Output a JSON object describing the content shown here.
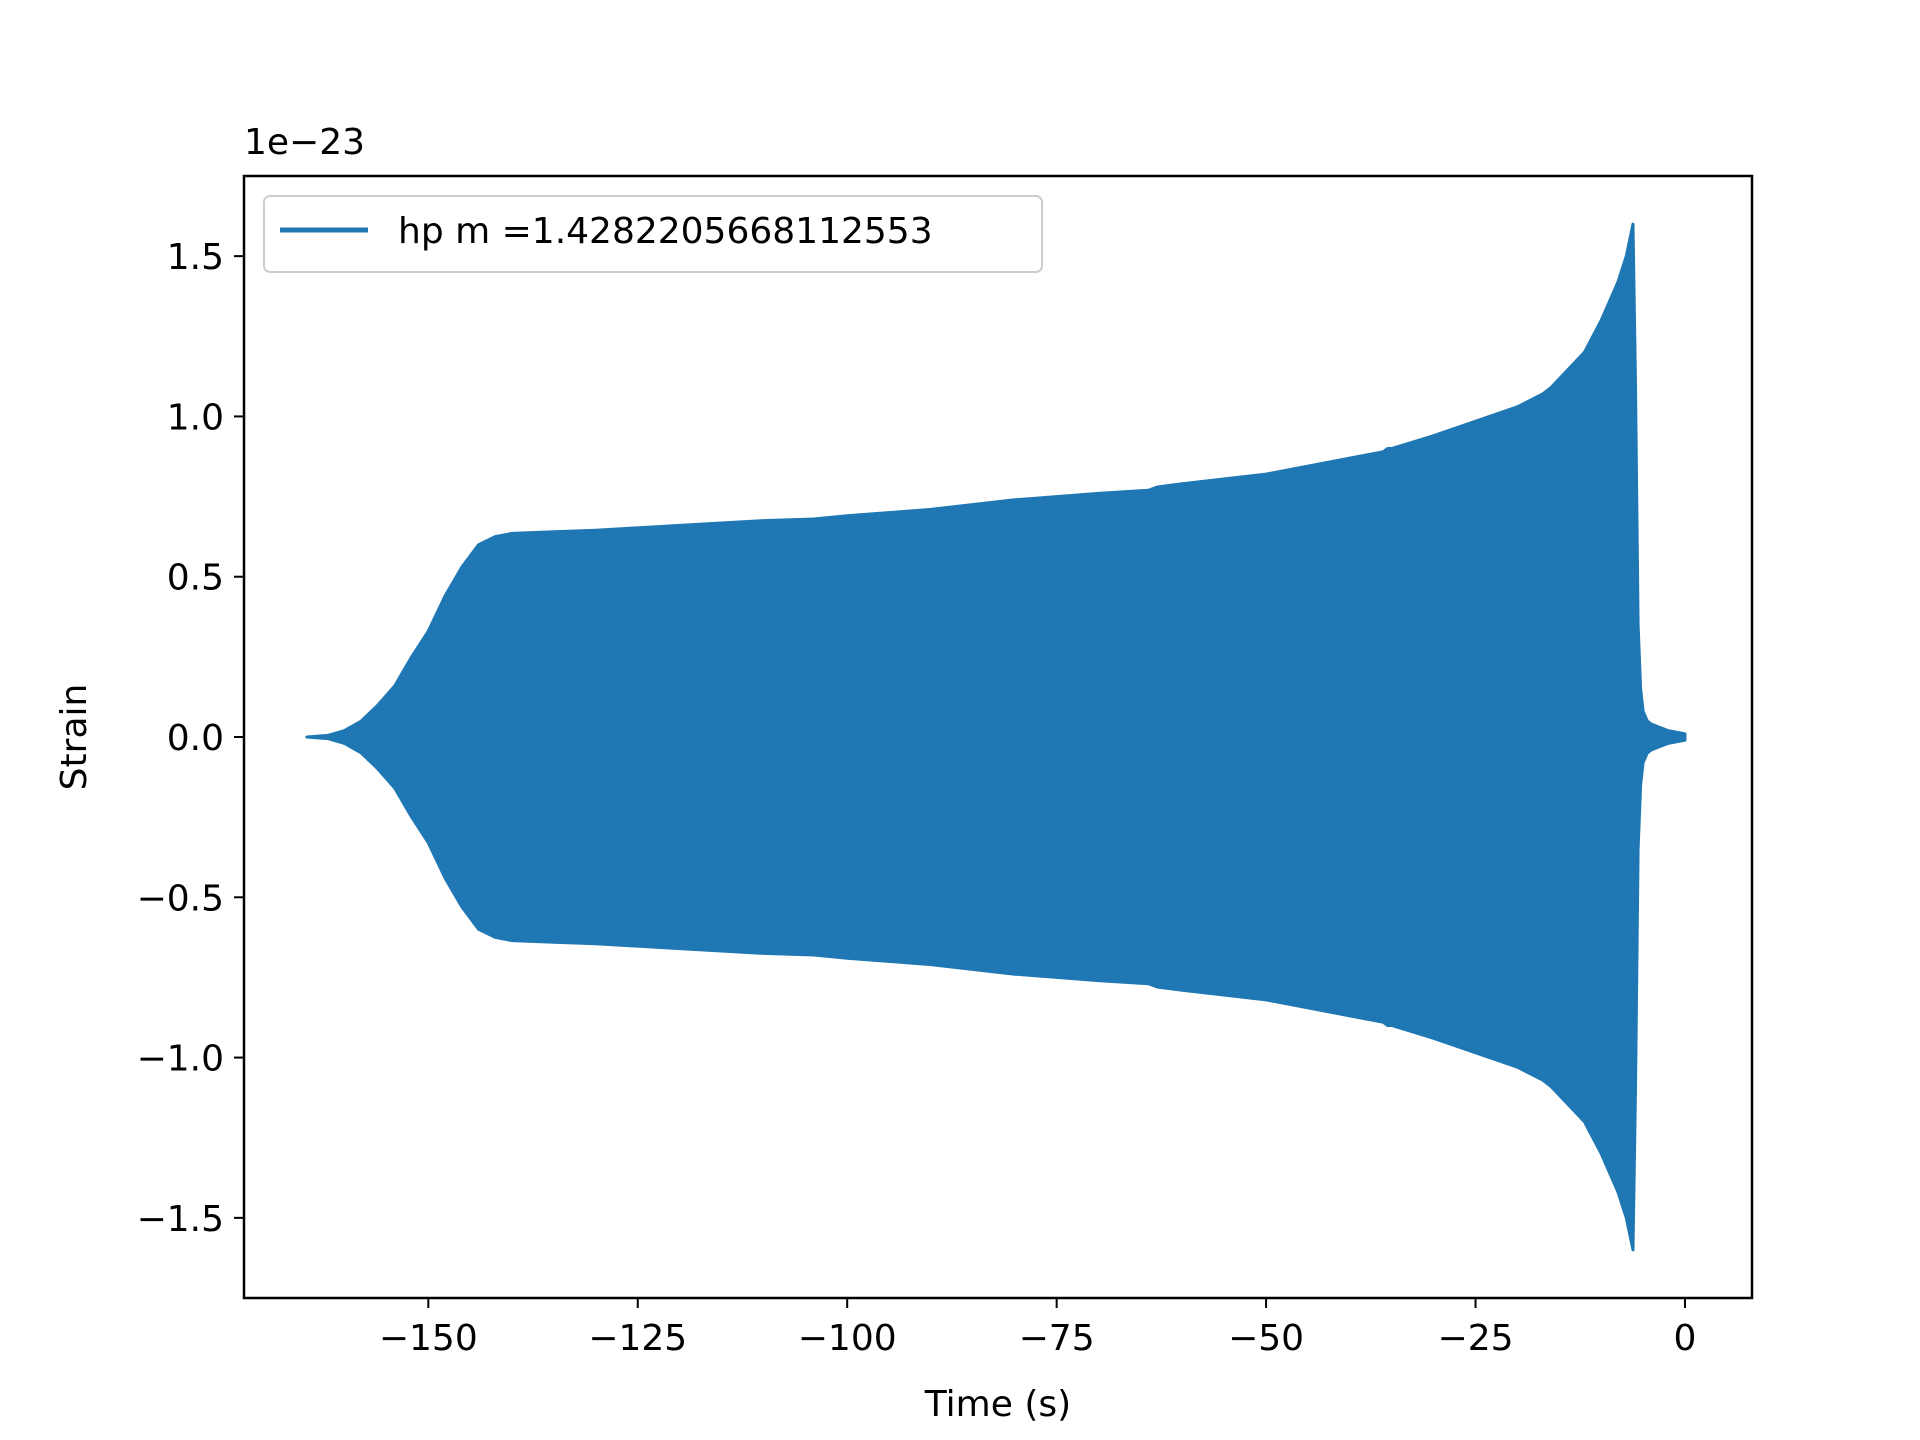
{
  "chart_data": {
    "type": "area",
    "title": "",
    "xlabel": "Time (s)",
    "ylabel": "Strain",
    "y_offset_text": "1e−23",
    "xlim": [
      -172,
      8
    ],
    "ylim": [
      -1.75,
      1.75
    ],
    "grid": false,
    "legend_position": "top-left",
    "xticks": [
      -150,
      -125,
      -100,
      -75,
      -50,
      -25,
      0
    ],
    "xtick_labels": [
      "−150",
      "−125",
      "−100",
      "−75",
      "−50",
      "−25",
      "0"
    ],
    "yticks": [
      -1.5,
      -1.0,
      -0.5,
      0.0,
      0.5,
      1.0,
      1.5
    ],
    "ytick_labels": [
      "−1.5",
      "−1.0",
      "−0.5",
      "0.0",
      "0.5",
      "1.0",
      "1.5"
    ],
    "series": [
      {
        "name": "hp m =1.4282205668112553",
        "color": "#1f77b4",
        "x_envelope": [
          -164.5,
          -162,
          -160,
          -158,
          -156,
          -154,
          -152,
          -150,
          -148,
          -146,
          -144,
          -142,
          -140,
          -135,
          -130,
          -120,
          -110,
          -104,
          -100,
          -90,
          -80,
          -70,
          -64,
          -63,
          -60,
          -50,
          -40,
          -36,
          -35.5,
          -35,
          -30,
          -20,
          -17,
          -16.5,
          -16,
          -12,
          -10,
          -8,
          -7,
          -6.2,
          -5.9,
          -5.6,
          -5.3,
          -5,
          -4.5,
          -4,
          -3,
          -2,
          -1,
          0
        ],
        "upper": [
          0.0,
          0.005,
          0.02,
          0.05,
          0.1,
          0.16,
          0.25,
          0.33,
          0.44,
          0.53,
          0.6,
          0.625,
          0.635,
          0.64,
          0.645,
          0.66,
          0.675,
          0.68,
          0.69,
          0.71,
          0.74,
          0.76,
          0.77,
          0.78,
          0.79,
          0.82,
          0.87,
          0.89,
          0.9,
          0.9,
          0.94,
          1.03,
          1.07,
          1.08,
          1.09,
          1.2,
          1.3,
          1.42,
          1.5,
          1.6,
          1.1,
          0.35,
          0.15,
          0.08,
          0.05,
          0.04,
          0.03,
          0.02,
          0.015,
          0.01
        ],
        "lower": [
          0.0,
          -0.005,
          -0.02,
          -0.05,
          -0.1,
          -0.16,
          -0.25,
          -0.33,
          -0.44,
          -0.53,
          -0.6,
          -0.625,
          -0.635,
          -0.64,
          -0.645,
          -0.66,
          -0.675,
          -0.68,
          -0.69,
          -0.71,
          -0.74,
          -0.76,
          -0.77,
          -0.78,
          -0.79,
          -0.82,
          -0.87,
          -0.89,
          -0.9,
          -0.9,
          -0.94,
          -1.03,
          -1.07,
          -1.08,
          -1.09,
          -1.2,
          -1.3,
          -1.42,
          -1.5,
          -1.6,
          -1.1,
          -0.35,
          -0.15,
          -0.08,
          -0.05,
          -0.04,
          -0.03,
          -0.02,
          -0.015,
          -0.01
        ]
      }
    ]
  }
}
